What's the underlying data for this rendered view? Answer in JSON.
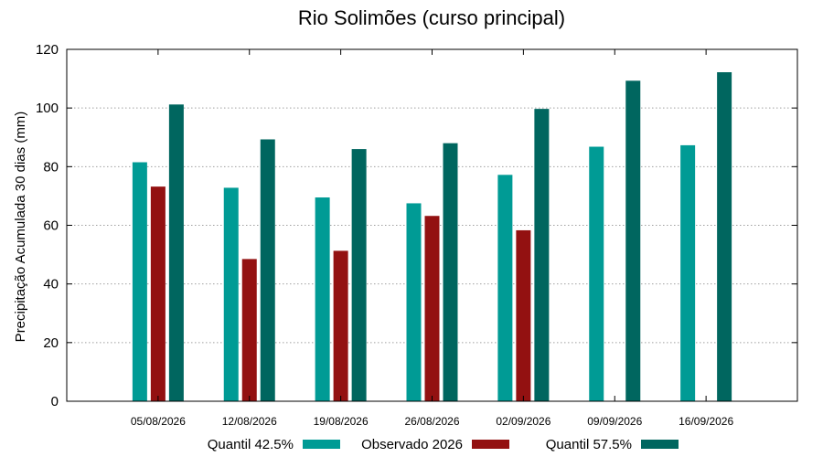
{
  "chart_data": {
    "type": "bar",
    "title": "Rio Solimões (curso principal)",
    "xlabel": "",
    "ylabel": "Precipitação Acumulada 30 dias (mm)",
    "ylim": [
      0,
      120
    ],
    "yticks": [
      0,
      20,
      40,
      60,
      80,
      100,
      120
    ],
    "grid": true,
    "legend_position": "bottom",
    "categories": [
      "05/08/2026",
      "12/08/2026",
      "19/08/2026",
      "26/08/2026",
      "02/09/2026",
      "09/09/2026",
      "16/09/2026"
    ],
    "series": [
      {
        "name": "Quantil 42.5%",
        "color": "#009b95",
        "values": [
          81.5,
          72.8,
          69.5,
          67.5,
          77.2,
          86.8,
          87.3
        ]
      },
      {
        "name": "Observado 2026",
        "color": "#931111",
        "values": [
          73.2,
          48.5,
          51.3,
          63.2,
          58.3,
          null,
          null
        ]
      },
      {
        "name": "Quantil 57.5%",
        "color": "#00665f",
        "values": [
          101.2,
          89.3,
          86.0,
          88.0,
          99.7,
          109.3,
          112.2
        ]
      }
    ]
  }
}
